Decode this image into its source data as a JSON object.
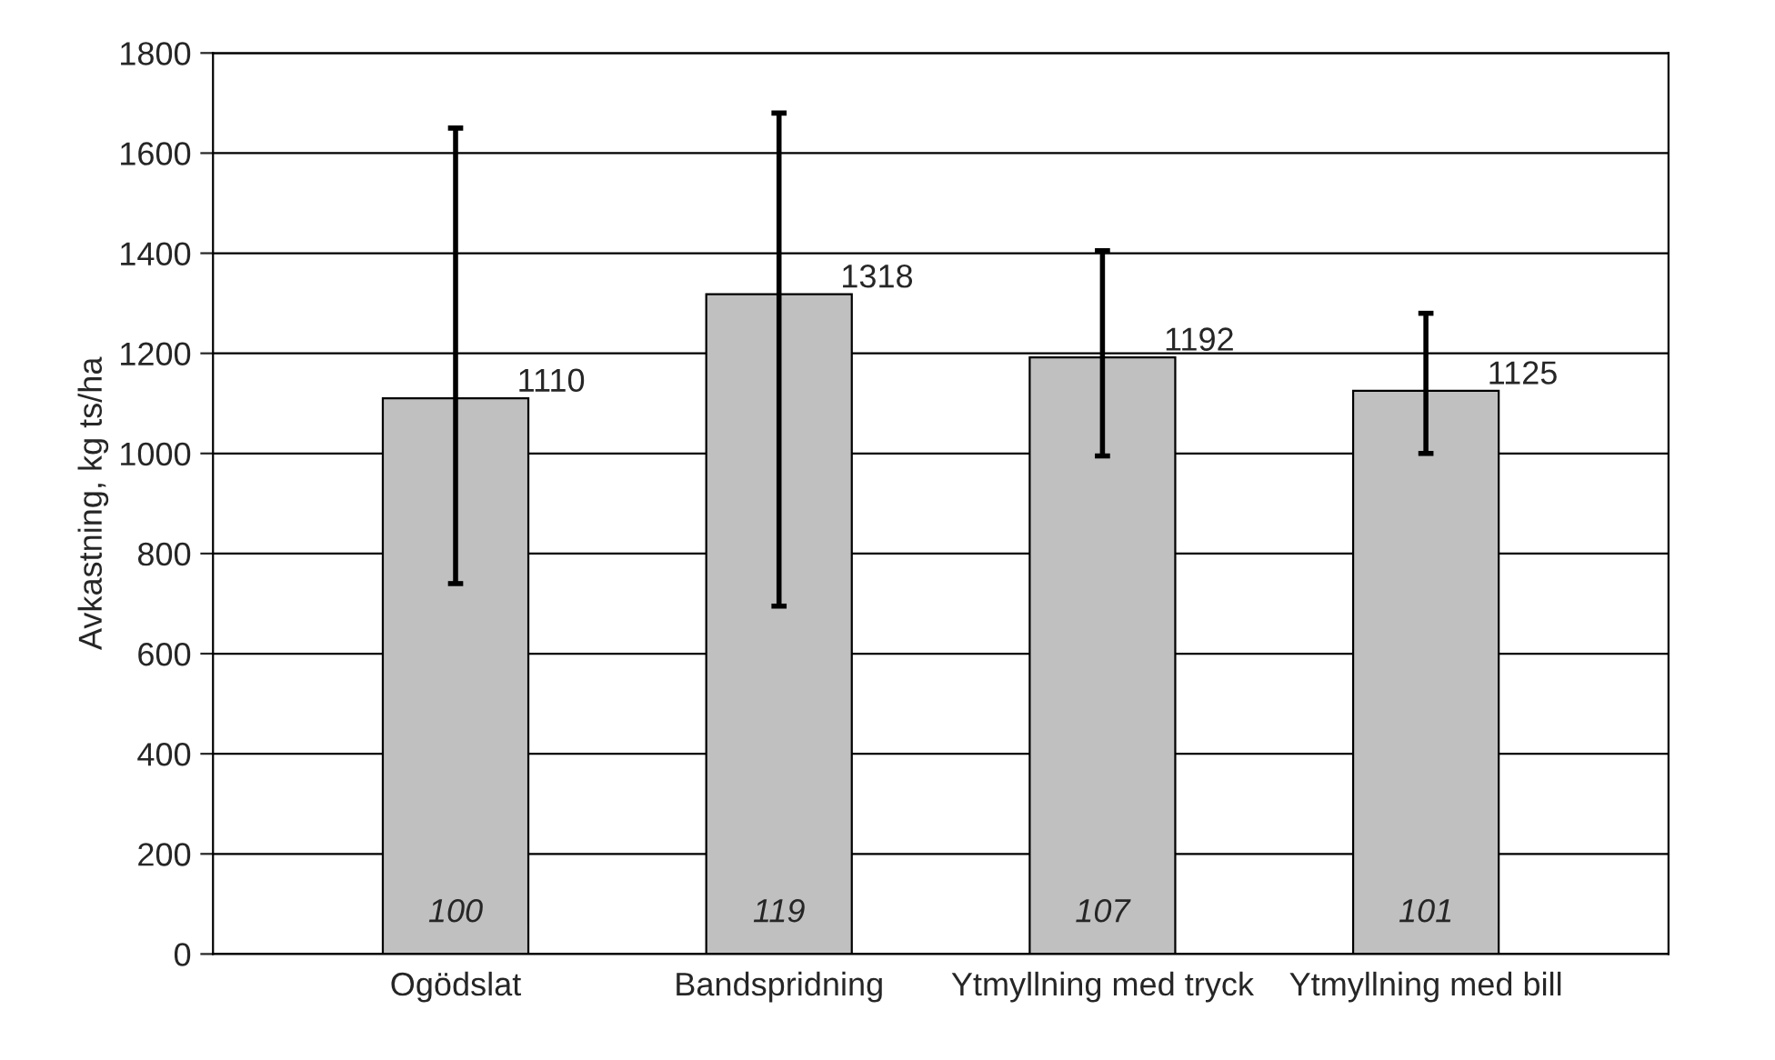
{
  "chart_data": {
    "type": "bar",
    "ylabel": "Avkastning, kg ts/ha",
    "categories": [
      "Ogödslat",
      "Bandspridning",
      "Ytmyllning med tryck",
      "Ytmyllning med bill"
    ],
    "values": [
      1110,
      1318,
      1192,
      1125
    ],
    "color": "#c0c0c0",
    "errors": [
      [
        740,
        1650
      ],
      [
        695,
        1680
      ],
      [
        995,
        1405
      ],
      [
        1000,
        1280
      ]
    ],
    "data_labels": true,
    "annotations": [
      "100",
      "119",
      "107",
      "101"
    ],
    "ylim": [
      0,
      1800
    ],
    "yticks": [
      0,
      200,
      400,
      600,
      800,
      1000,
      1200,
      1400,
      1600,
      1800
    ],
    "grid": "y",
    "legend": false
  }
}
